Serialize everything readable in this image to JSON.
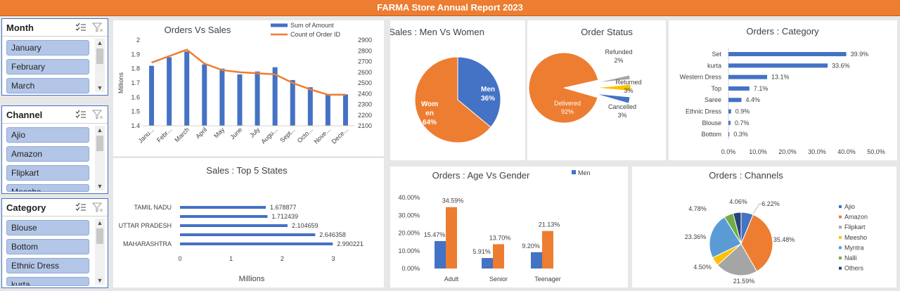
{
  "banner": "FARMA Store Annual Report 2023",
  "slicers": [
    {
      "title": "Month",
      "items": [
        "January",
        "February",
        "March"
      ]
    },
    {
      "title": "Channel",
      "items": [
        "Ajio",
        "Amazon",
        "Flipkart",
        "Meesho"
      ]
    },
    {
      "title": "Category",
      "items": [
        "Blouse",
        "Bottom",
        "Ethnic Dress",
        "kurta"
      ]
    }
  ],
  "colors": {
    "blue": "#4472c4",
    "orange": "#ed7d31",
    "gray": "#a5a5a5",
    "yellow": "#ffc000",
    "lightblue": "#5b9bd5",
    "green": "#70ad47",
    "navy": "#264478"
  },
  "chart_data": [
    {
      "id": "orders_vs_sales",
      "type": "bar",
      "title": "Orders Vs Sales",
      "categories": [
        "January",
        "February",
        "March",
        "April",
        "May",
        "June",
        "July",
        "August",
        "September",
        "October",
        "November",
        "December"
      ],
      "tick_labels": [
        "Janu...",
        "Febr...",
        "March",
        "April",
        "May",
        "June",
        "July",
        "Augu...",
        "Sept...",
        "Octo...",
        "Nove...",
        "Dece..."
      ],
      "series": [
        {
          "name": "Sum of Amount",
          "type": "bar",
          "axis": "left",
          "values": [
            1.82,
            1.88,
            1.92,
            1.83,
            1.8,
            1.76,
            1.78,
            1.81,
            1.72,
            1.67,
            1.62,
            1.62
          ]
        },
        {
          "name": "Count of Order ID",
          "type": "line",
          "axis": "right",
          "values": [
            2690,
            2750,
            2810,
            2680,
            2620,
            2600,
            2590,
            2580,
            2500,
            2440,
            2390,
            2390
          ]
        }
      ],
      "ylabel": "Millions",
      "ylim": [
        1.4,
        2.0
      ],
      "yticks": [
        "1.4",
        "1.5",
        "1.6",
        "1.7",
        "1.8",
        "1.9",
        "2"
      ],
      "y2lim": [
        2100,
        2900
      ],
      "y2ticks": [
        "2100",
        "2200",
        "2300",
        "2400",
        "2500",
        "2600",
        "2700",
        "2800",
        "2900"
      ],
      "legend": "top"
    },
    {
      "id": "top_states",
      "type": "bar",
      "orientation": "horizontal",
      "title": "Sales : Top 5 States",
      "categories": [
        "TAMIL NADU",
        "",
        "UTTAR PRADESH",
        "",
        "MAHARASHTRA"
      ],
      "values": [
        1.678877,
        1.712439,
        2.104659,
        2.646358,
        2.990221
      ],
      "value_labels": [
        "1.678877",
        "1.712439",
        "2.104659",
        "2.646358",
        "2.990221"
      ],
      "xlabel": "Millions",
      "xlim": [
        0,
        3
      ],
      "xticks": [
        "0",
        "1",
        "2",
        "3"
      ]
    },
    {
      "id": "men_vs_women",
      "type": "pie",
      "title": "Sales : Men Vs Women",
      "labels": [
        "Men",
        "Women"
      ],
      "label_lines": [
        [
          "Men",
          "36%"
        ],
        [
          "Wom",
          "en",
          "64%"
        ]
      ],
      "values": [
        36,
        64
      ]
    },
    {
      "id": "order_status",
      "type": "pie",
      "title": "Order Status",
      "labels": [
        "Delivered",
        "Refunded",
        "Returned",
        "Cancelled"
      ],
      "label_lines": [
        [
          "Delivered",
          "92%"
        ],
        [
          "Refunded",
          "2%"
        ],
        [
          "Returned",
          "3%"
        ],
        [
          "Cancelled",
          "3%"
        ]
      ],
      "values": [
        92,
        2,
        3,
        3
      ]
    },
    {
      "id": "orders_category",
      "type": "bar",
      "orientation": "horizontal",
      "title": "Orders : Category",
      "categories": [
        "Set",
        "kurta",
        "Western Dress",
        "Top",
        "Saree",
        "Ethnic Dress",
        "Blouse",
        "Bottom"
      ],
      "values": [
        39.9,
        33.6,
        13.1,
        7.1,
        4.4,
        0.9,
        0.7,
        0.3
      ],
      "value_labels": [
        "39.9%",
        "33.6%",
        "13.1%",
        "7.1%",
        "4.4%",
        "0.9%",
        "0.7%",
        "0.3%"
      ],
      "xlim": [
        0,
        50
      ],
      "xticks": [
        "0.0%",
        "10.0%",
        "20.0%",
        "30.0%",
        "40.0%",
        "50.0%"
      ]
    },
    {
      "id": "age_vs_gender",
      "type": "bar",
      "title": "Orders : Age Vs Gender",
      "categories": [
        "Adult",
        "Senior",
        "Teenager"
      ],
      "series": [
        {
          "name": "Men",
          "values": [
            15.47,
            5.91,
            9.2
          ],
          "labels": [
            "15.47%",
            "5.91%",
            "9.20%"
          ]
        },
        {
          "values": [
            34.59,
            13.7,
            21.13
          ],
          "labels": [
            "34.59%",
            "13.70%",
            "21.13%"
          ]
        }
      ],
      "ylim": [
        0,
        40
      ],
      "yticks": [
        "0.00%",
        "10.00%",
        "20.00%",
        "30.00%",
        "40.00%"
      ],
      "legend": "top"
    },
    {
      "id": "orders_channels",
      "type": "pie",
      "title": "Orders : Channels",
      "labels": [
        "Ajio",
        "Amazon",
        "Flipkart",
        "Meesho",
        "Myntra",
        "Nalli",
        "Others"
      ],
      "values": [
        6.22,
        35.48,
        21.59,
        4.5,
        23.36,
        4.78,
        4.06
      ],
      "value_labels": [
        "6.22%",
        "35.48%",
        "21.59%",
        "4.50%",
        "23.36%",
        "4.78%",
        "4.06%"
      ],
      "legend": "right"
    }
  ]
}
